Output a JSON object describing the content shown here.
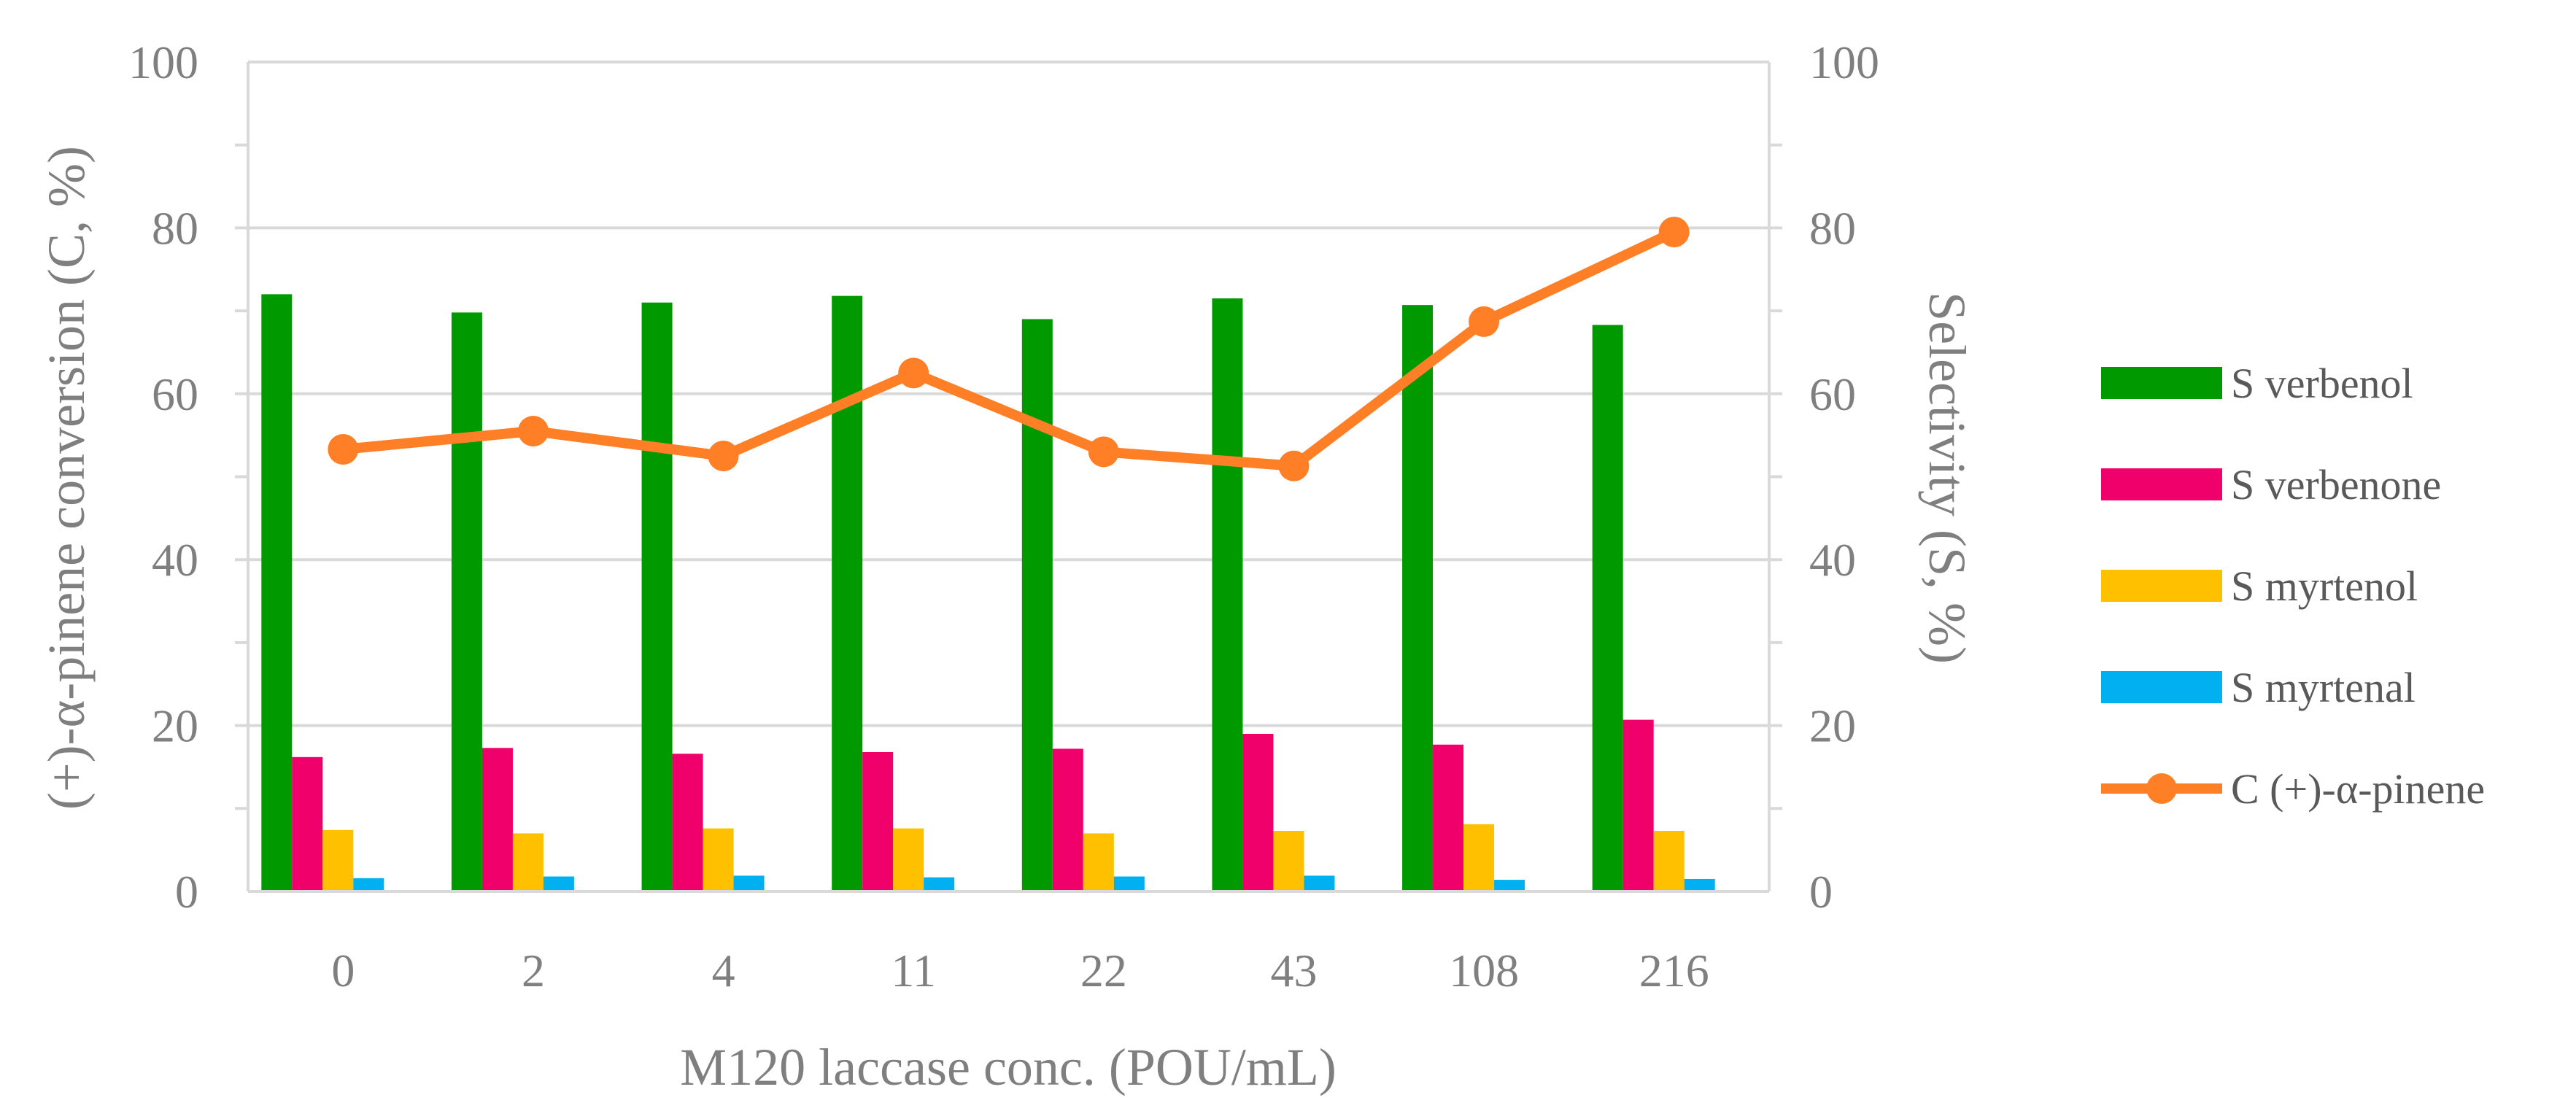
{
  "chart_data": {
    "type": "bar",
    "title": "",
    "xlabel": "M120 laccase conc. (POU/mL)",
    "ylabel_left": "(+)-α-pinene conversion  (C, %)",
    "ylabel_right": "Selectivity (S, %)",
    "ylim_left": [
      0,
      100
    ],
    "ylim_right": [
      0,
      100
    ],
    "yticks": [
      "0",
      "20",
      "40",
      "60",
      "80",
      "100"
    ],
    "categories": [
      "0",
      "2",
      "4",
      "11",
      "22",
      "43",
      "108",
      "216"
    ],
    "series": [
      {
        "name": "S verbenol",
        "kind": "bar",
        "axis": "right",
        "color": "#009a00",
        "values": [
          72,
          69.8,
          71,
          71.8,
          69,
          71.5,
          70.7,
          68.3
        ]
      },
      {
        "name": "S verbenone",
        "kind": "bar",
        "axis": "right",
        "color": "#f0006b",
        "values": [
          16.2,
          17.3,
          16.6,
          16.8,
          17.2,
          19,
          17.7,
          20.7
        ]
      },
      {
        "name": "S myrtenol",
        "kind": "bar",
        "axis": "right",
        "color": "#ffc000",
        "values": [
          7.4,
          7,
          7.6,
          7.6,
          7,
          7.3,
          8.1,
          7.3
        ]
      },
      {
        "name": "S myrtenal",
        "kind": "bar",
        "axis": "right",
        "color": "#00b0f0",
        "values": [
          1.6,
          1.8,
          1.9,
          1.7,
          1.8,
          1.9,
          1.4,
          1.5
        ]
      },
      {
        "name": "C (+)-α-pinene",
        "kind": "line",
        "axis": "left",
        "color": "#ff7f27",
        "values": [
          53.3,
          55.5,
          52.5,
          62.5,
          53,
          51.3,
          68.7,
          79.5
        ]
      }
    ],
    "grid": true,
    "legend": "right"
  }
}
